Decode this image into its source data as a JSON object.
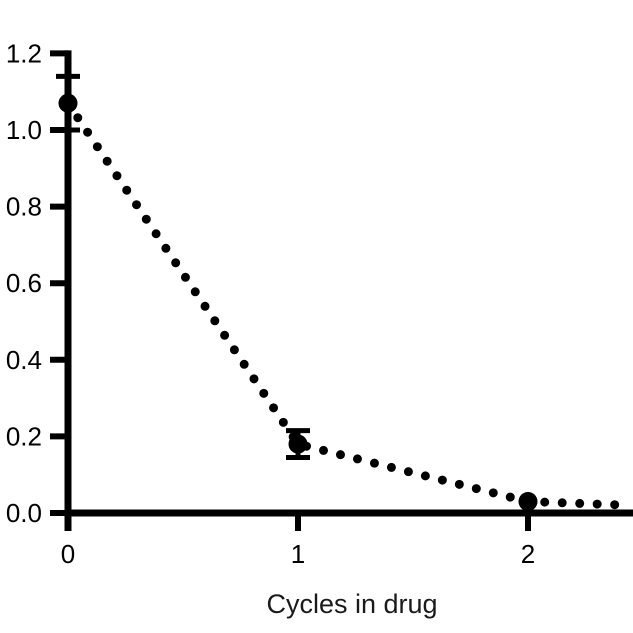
{
  "chart_data": {
    "type": "line",
    "title": "",
    "xlabel": "Cycles in drug",
    "ylabel": "",
    "xlim": [
      0,
      2.45
    ],
    "ylim": [
      0,
      1.2
    ],
    "x_ticks": [
      0,
      1,
      2
    ],
    "y_ticks": [
      0.0,
      0.2,
      0.4,
      0.6,
      0.8,
      1.0,
      1.2
    ],
    "x_tick_labels": [
      "0",
      "1",
      "2"
    ],
    "y_tick_labels": [
      "0.0",
      "0.2",
      "0.4",
      "0.6",
      "0.8",
      "1.0",
      "1.2"
    ],
    "grid": false,
    "legend": "none",
    "line_style": "dotted",
    "color": "#000000",
    "series": [
      {
        "x": [
          0,
          1,
          2
        ],
        "y": [
          1.07,
          0.18,
          0.03
        ],
        "error": [
          0.07,
          0.035,
          0.0
        ]
      }
    ],
    "trend_extension": {
      "x": 2.45,
      "y": 0.02
    }
  }
}
